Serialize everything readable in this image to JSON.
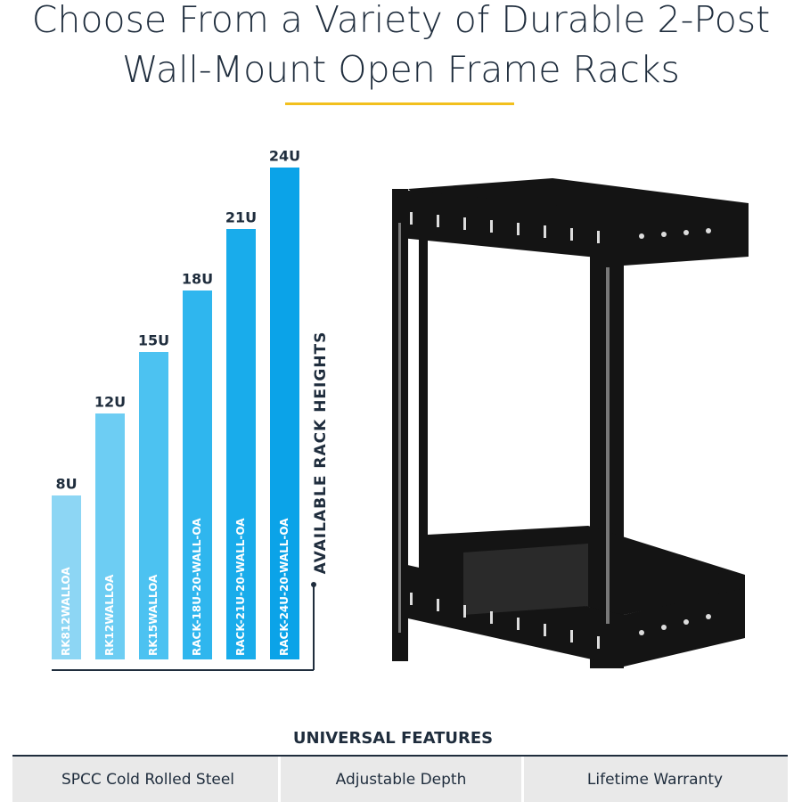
{
  "header": {
    "title_lines": [
      "Choose From a Variety of Durable 2-Post",
      "Wall-Mount Open Frame Racks"
    ]
  },
  "chart_data": {
    "type": "bar",
    "axis_label": "AVAILABLE RACK HEIGHTS",
    "categories": [
      "RK812WALLOA",
      "RK12WALLOA",
      "RK15WALLOA",
      "RACK-18U-20-WALL-OA",
      "RACK-21U-20-WALL-OA",
      "RACK-24U-20-WALL-OA"
    ],
    "values": [
      8,
      12,
      15,
      18,
      21,
      24
    ],
    "value_labels": [
      "8U",
      "12U",
      "15U",
      "18U",
      "21U",
      "24U"
    ],
    "colors": [
      "#8dd6f4",
      "#6dcdf3",
      "#4cc2f1",
      "#2fb6ee",
      "#19aceb",
      "#0ba3e8"
    ]
  },
  "features": {
    "title": "UNIVERSAL FEATURES",
    "items": [
      "SPCC Cold Rolled Steel",
      "Adjustable Depth",
      "Lifetime Warranty"
    ]
  }
}
